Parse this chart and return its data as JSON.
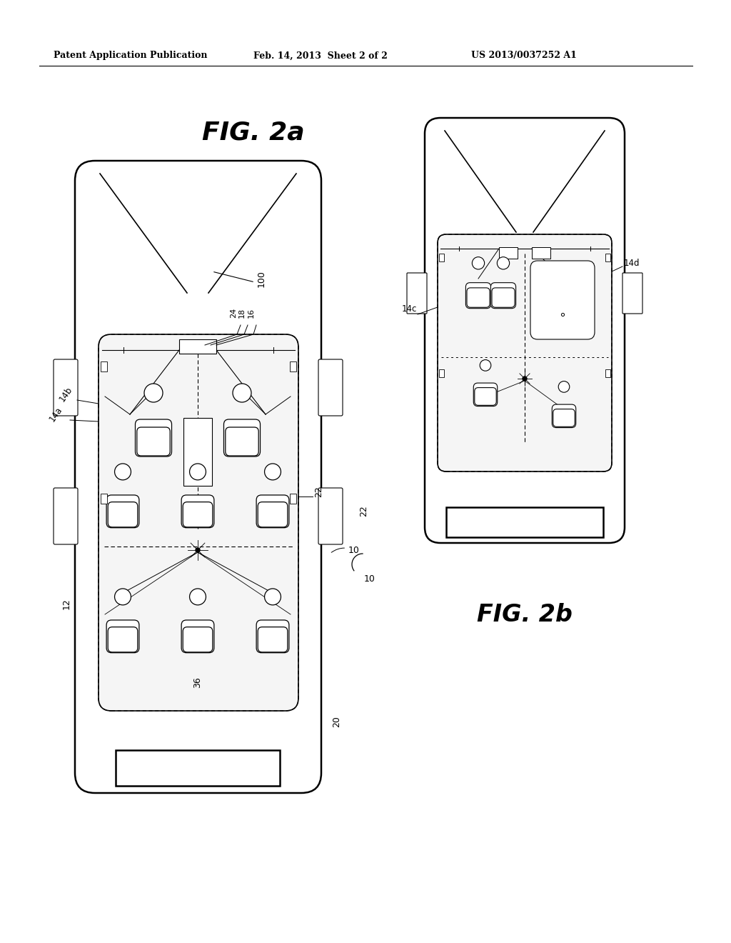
{
  "header_left": "Patent Application Publication",
  "header_mid": "Feb. 14, 2013  Sheet 2 of 2",
  "header_right": "US 2013/0037252 A1",
  "fig2a_label": "FIG. 2a",
  "fig2b_label": "FIG. 2b",
  "background_color": "#ffffff",
  "line_color": "#000000"
}
